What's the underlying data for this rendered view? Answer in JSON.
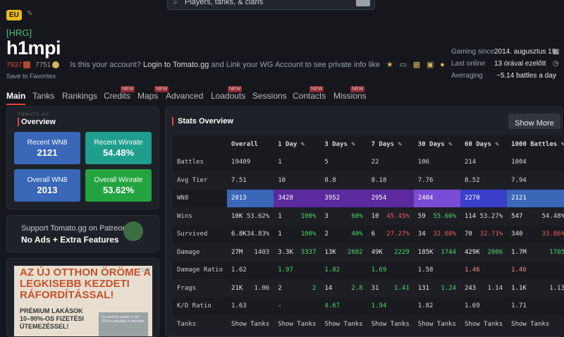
{
  "header": {
    "region": "EU",
    "search_placeholder": "Players, tanks, & clans"
  },
  "player": {
    "clan": "[HRG]",
    "name": "h1mpi",
    "rating1": "7937",
    "rating2": "7751",
    "account_msg_pre": "Is this your account?",
    "account_msg_link": "Login to Tomato.gg",
    "account_msg_post": "and Link your WG Account to see private info like",
    "save_fav": "Save to Favorites"
  },
  "meta": [
    {
      "label": "Gaming since",
      "value": "2014. augusztus 19.",
      "icon": "calendar-icon"
    },
    {
      "label": "Last online",
      "value": "13 órával ezelőtt",
      "icon": "clock-icon"
    },
    {
      "label": "Averaging",
      "value": "~5.14 battles a day",
      "icon": "chart-icon"
    }
  ],
  "tabs": [
    {
      "label": "Main",
      "badge": ""
    },
    {
      "label": "Tanks",
      "badge": ""
    },
    {
      "label": "Rankings",
      "badge": ""
    },
    {
      "label": "Credits",
      "badge": "NEW"
    },
    {
      "label": "Maps",
      "badge": "NEW"
    },
    {
      "label": "Advanced",
      "badge": ""
    },
    {
      "label": "Loadouts",
      "badge": "NEW"
    },
    {
      "label": "Sessions",
      "badge": ""
    },
    {
      "label": "Contacts",
      "badge": "NEW"
    },
    {
      "label": "Missions",
      "badge": "NEW"
    }
  ],
  "overview": {
    "caption": "TOMATO.GG",
    "title": "Overview",
    "recent_wn8_label": "Recent WN8",
    "recent_wn8": "2121",
    "recent_wr_label": "Recent Winrate",
    "recent_wr": "54.48%",
    "overall_wn8_label": "Overall WN8",
    "overall_wn8": "2013",
    "overall_wr_label": "Overall Winrate",
    "overall_wr": "53.62%",
    "colors": {
      "blue": "#3a67b8",
      "teal": "#1f9e8e",
      "green": "#23a440"
    }
  },
  "patreon": {
    "line1": "Support Tomato.gg on Patreon",
    "line2": "No Ads + Extra Features"
  },
  "ad": {
    "headline": "AZ ÚJ OTTHON ÖRÖME A LEGKISEBB KEZDETI RÁFORDÍTÁSSAL!",
    "sub": "PRÉMIUM LAKÁSOK 10–90%-OS FIZETÉSI ÜTEMEZÉSSEL!",
    "small": "Új vásárlás esetén a 10–90%-a parkoláe is lebontás"
  },
  "stats": {
    "title": "Stats Overview",
    "show_more": "Show More",
    "columns": [
      "",
      "Overall",
      "1 Day",
      "3 Days",
      "7 Days",
      "30 Days",
      "60 Days",
      "1000 Battles"
    ],
    "battles": [
      "19409",
      "1",
      "5",
      "22",
      "106",
      "214",
      "1004"
    ],
    "avg_tier": [
      "7.51",
      "10",
      "8.8",
      "8.18",
      "7.76",
      "8.52",
      "7.94"
    ],
    "wn8": [
      "2013",
      "3428",
      "3952",
      "2954",
      "2404",
      "2270",
      "2121"
    ],
    "wn8_colors": [
      "#3a67b8",
      "#5b2a9e",
      "#5b2a9e",
      "#5b2a9e",
      "#7a4cd6",
      "#3a3fc9",
      "#3a67b8"
    ],
    "wins": [
      [
        "10K",
        "53.62%"
      ],
      [
        "1",
        "100%"
      ],
      [
        "3",
        "60%"
      ],
      [
        "10",
        "45.45%"
      ],
      [
        "59",
        "55.66%"
      ],
      [
        "114",
        "53.27%"
      ],
      [
        "547",
        "54.48%"
      ]
    ],
    "survived": [
      [
        "6.8K",
        "34.83%"
      ],
      [
        "1",
        "100%"
      ],
      [
        "2",
        "40%"
      ],
      [
        "6",
        "27.27%"
      ],
      [
        "34",
        "32.08%"
      ],
      [
        "70",
        "32.71%"
      ],
      [
        "340",
        "33.86%"
      ]
    ],
    "damage": [
      [
        "27M",
        "1403"
      ],
      [
        "3.3K",
        "3337"
      ],
      [
        "13K",
        "2682"
      ],
      [
        "49K",
        "2229"
      ],
      [
        "185K",
        "1744"
      ],
      [
        "429K",
        "2006"
      ],
      [
        "1.7M",
        "1705"
      ]
    ],
    "damage_ratio": [
      "1.62",
      "1.97",
      "1.82",
      "1.69",
      "1.58",
      "1.46",
      "1.46"
    ],
    "frags": [
      [
        "21K",
        "1.06"
      ],
      [
        "2",
        "2"
      ],
      [
        "14",
        "2.8"
      ],
      [
        "31",
        "1.41"
      ],
      [
        "131",
        "1.24"
      ],
      [
        "243",
        "1.14"
      ],
      [
        "1.1K",
        "1.13"
      ]
    ],
    "kd": [
      "1.63",
      "-",
      "4.67",
      "1.94",
      "1.82",
      "1.69",
      "1.71"
    ],
    "tanks_label": "Show Tanks",
    "row_labels": {
      "battles": "Battles",
      "avg_tier": "Avg Tier",
      "wn8": "WN8",
      "wins": "Wins",
      "survived": "Survived",
      "damage": "Damage",
      "damage_ratio": "Damage Ratio",
      "frags": "Frags",
      "kd": "K/D Ratio",
      "tanks": "Tanks"
    }
  }
}
